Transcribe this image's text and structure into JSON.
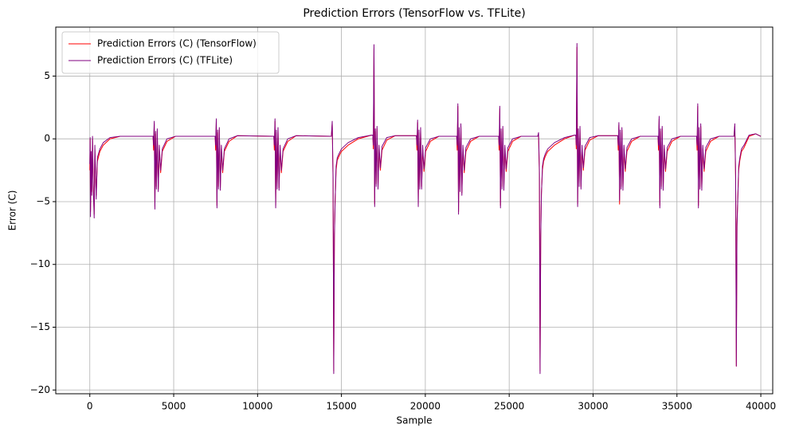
{
  "chart_data": {
    "type": "line",
    "title": "Prediction Errors (TensorFlow vs. TFLite)",
    "x_label": "Sample",
    "y_label": "Error (C)",
    "x": [
      0,
      20,
      40,
      80,
      120,
      160,
      200,
      260,
      300,
      380,
      450,
      600,
      800,
      1200,
      1800,
      3770,
      3800,
      3840,
      3880,
      3920,
      3970,
      4020,
      4080,
      4140,
      4220,
      4320,
      4600,
      5100,
      7470,
      7500,
      7540,
      7580,
      7620,
      7670,
      7720,
      7780,
      7840,
      7920,
      8020,
      8300,
      8800,
      10970,
      11000,
      11040,
      11080,
      11120,
      11170,
      11220,
      11280,
      11340,
      11420,
      11520,
      11800,
      12300,
      14400,
      14450,
      14500,
      14540,
      14580,
      14620,
      14680,
      14750,
      14850,
      15000,
      15400,
      16000,
      16800,
      16870,
      16900,
      16940,
      16980,
      17020,
      17070,
      17120,
      17180,
      17240,
      17320,
      17420,
      17700,
      18200,
      19470,
      19500,
      19540,
      19580,
      19620,
      19670,
      19720,
      19780,
      19840,
      19920,
      20020,
      20300,
      20800,
      21870,
      21900,
      21940,
      21980,
      22020,
      22070,
      22120,
      22180,
      22240,
      22320,
      22420,
      22700,
      23200,
      24370,
      24400,
      24440,
      24480,
      24520,
      24570,
      24620,
      24680,
      24740,
      24820,
      24920,
      25200,
      25700,
      26700,
      26750,
      26800,
      26840,
      26880,
      26920,
      26980,
      27050,
      27150,
      27300,
      27700,
      28300,
      28900,
      28970,
      29000,
      29040,
      29080,
      29120,
      29170,
      29220,
      29280,
      29340,
      29420,
      29520,
      29800,
      30300,
      31470,
      31500,
      31540,
      31580,
      31620,
      31670,
      31720,
      31780,
      31840,
      31920,
      32020,
      32300,
      32800,
      33870,
      33900,
      33940,
      33980,
      34020,
      34070,
      34120,
      34180,
      34240,
      34320,
      34420,
      34700,
      35200,
      36170,
      36200,
      36240,
      36280,
      36320,
      36370,
      36420,
      36480,
      36540,
      36620,
      36720,
      37000,
      37500,
      38400,
      38450,
      38500,
      38540,
      38580,
      38620,
      38680,
      38750,
      38850,
      39000,
      39300,
      39700,
      40000
    ],
    "series": [
      {
        "name": "Prediction Errors (C) (TensorFlow)",
        "color": "#ff0000",
        "values": [
          -2.5,
          0.0,
          -5.8,
          -1.2,
          -4.2,
          0.0,
          -3.2,
          -6.0,
          -0.8,
          -4.5,
          -1.8,
          -1.0,
          -0.5,
          0.0,
          0.2,
          0.2,
          -0.9,
          1.2,
          -5.4,
          0.4,
          -3.8,
          0.6,
          -4.0,
          -0.8,
          -2.7,
          -1.0,
          -0.2,
          0.2,
          0.2,
          -0.9,
          1.4,
          -5.3,
          0.5,
          -3.8,
          0.7,
          -3.9,
          -0.8,
          -2.7,
          -1.0,
          -0.2,
          0.25,
          0.2,
          -0.9,
          1.4,
          -5.3,
          0.5,
          -3.8,
          0.7,
          -3.9,
          -0.8,
          -2.7,
          -1.0,
          -0.2,
          0.25,
          0.2,
          1.2,
          -3.3,
          -18.5,
          -7.6,
          -5.0,
          -2.5,
          -1.7,
          -1.4,
          -1.0,
          -0.5,
          0.0,
          0.3,
          0.3,
          -0.8,
          7.2,
          -5.2,
          0.6,
          -3.6,
          0.8,
          -3.8,
          -0.8,
          -2.5,
          -0.9,
          -0.1,
          0.25,
          0.25,
          -0.9,
          1.3,
          -5.2,
          0.5,
          -3.8,
          0.7,
          -3.8,
          -0.8,
          -2.6,
          -1.0,
          -0.2,
          0.2,
          0.2,
          -0.9,
          2.6,
          -5.8,
          0.7,
          -4.0,
          1.0,
          -4.3,
          -0.8,
          -2.7,
          -1.0,
          -0.2,
          0.2,
          0.2,
          -0.9,
          2.4,
          -5.3,
          0.6,
          -3.8,
          0.8,
          -3.9,
          -0.8,
          -2.6,
          -1.0,
          -0.2,
          0.2,
          0.2,
          0.3,
          -2.8,
          -18.5,
          -7.7,
          -4.3,
          -2.5,
          -1.8,
          -1.4,
          -1.0,
          -0.5,
          0.0,
          0.3,
          0.3,
          -0.8,
          7.3,
          -5.2,
          0.6,
          -3.6,
          0.8,
          -3.8,
          -0.8,
          -2.5,
          -0.9,
          -0.1,
          0.25,
          0.25,
          -0.9,
          1.1,
          -5.2,
          0.5,
          -3.8,
          0.7,
          -3.9,
          -0.8,
          -2.6,
          -1.0,
          -0.2,
          0.2,
          0.2,
          -0.9,
          1.6,
          -5.3,
          0.6,
          -3.8,
          0.8,
          -3.9,
          -0.8,
          -2.6,
          -1.0,
          -0.2,
          0.2,
          0.2,
          -0.9,
          2.6,
          -5.3,
          0.7,
          -3.8,
          1.0,
          -3.9,
          -0.8,
          -2.6,
          -1.0,
          -0.2,
          0.2,
          0.2,
          1.0,
          -3.3,
          -18.1,
          -6.8,
          -5.0,
          -2.5,
          -1.7,
          -1.0,
          -0.7,
          0.2,
          0.4,
          0.2
        ]
      },
      {
        "name": "Prediction Errors (C) (TFLite)",
        "color": "#800080",
        "values": [
          -2.0,
          0.1,
          -6.2,
          -1.0,
          -4.5,
          0.2,
          -3.5,
          -6.3,
          -0.5,
          -4.8,
          -1.5,
          -0.8,
          -0.3,
          0.1,
          0.2,
          0.2,
          -0.5,
          1.4,
          -5.6,
          0.6,
          -4.0,
          0.8,
          -4.2,
          -0.5,
          -2.5,
          -0.8,
          0.0,
          0.2,
          0.2,
          -0.5,
          1.6,
          -5.5,
          0.7,
          -4.0,
          0.9,
          -4.1,
          -0.5,
          -2.5,
          -0.8,
          0.0,
          0.25,
          0.2,
          -0.5,
          1.6,
          -5.5,
          0.7,
          -4.0,
          0.9,
          -4.1,
          -0.5,
          -2.5,
          -0.8,
          0.0,
          0.25,
          0.2,
          1.4,
          -3.0,
          -18.7,
          -7.9,
          -5.2,
          -2.2,
          -1.5,
          -1.2,
          -0.8,
          -0.3,
          0.1,
          0.3,
          0.3,
          -0.5,
          7.5,
          -5.4,
          0.8,
          -3.8,
          1.0,
          -4.0,
          -0.5,
          -2.3,
          -0.6,
          0.1,
          0.25,
          0.25,
          -0.5,
          1.5,
          -5.4,
          0.7,
          -4.0,
          0.9,
          -4.0,
          -0.5,
          -2.4,
          -0.7,
          0.0,
          0.2,
          0.2,
          -0.5,
          2.8,
          -6.0,
          0.9,
          -4.2,
          1.2,
          -4.5,
          -0.5,
          -2.5,
          -0.7,
          0.0,
          0.2,
          0.2,
          -0.5,
          2.6,
          -5.5,
          0.8,
          -4.0,
          1.0,
          -4.1,
          -0.5,
          -2.4,
          -0.7,
          0.0,
          0.2,
          0.2,
          0.5,
          -2.5,
          -18.7,
          -8.0,
          -4.5,
          -2.2,
          -1.6,
          -1.2,
          -0.8,
          -0.3,
          0.1,
          0.3,
          0.3,
          -0.5,
          7.6,
          -5.4,
          0.8,
          -3.8,
          1.0,
          -4.0,
          -0.5,
          -2.3,
          -0.6,
          0.1,
          0.25,
          0.25,
          -0.5,
          1.3,
          -4.9,
          0.7,
          -4.0,
          0.9,
          -4.1,
          -0.5,
          -2.4,
          -0.7,
          0.0,
          0.2,
          0.2,
          -0.5,
          1.8,
          -5.5,
          0.8,
          -4.0,
          1.0,
          -4.1,
          -0.5,
          -2.4,
          -0.7,
          0.0,
          0.2,
          0.2,
          -0.5,
          2.8,
          -5.5,
          0.9,
          -4.0,
          1.2,
          -4.1,
          -0.5,
          -2.4,
          -0.7,
          0.0,
          0.2,
          0.2,
          1.2,
          -3.0,
          -18.1,
          -7.0,
          -5.2,
          -2.2,
          -1.5,
          -0.8,
          -0.5,
          0.3,
          0.4,
          0.2
        ]
      }
    ],
    "xlim": [
      -2030,
      40710
    ],
    "ylim": [
      -20.3,
      8.9
    ],
    "xticks": [
      0,
      5000,
      10000,
      15000,
      20000,
      25000,
      30000,
      35000,
      40000
    ],
    "yticks": [
      {
        "value": -20,
        "label": "−20"
      },
      {
        "value": -15,
        "label": "−15"
      },
      {
        "value": -10,
        "label": "−10"
      },
      {
        "value": -5,
        "label": "−5"
      },
      0,
      5
    ],
    "grid": true,
    "legend": "upper left"
  }
}
